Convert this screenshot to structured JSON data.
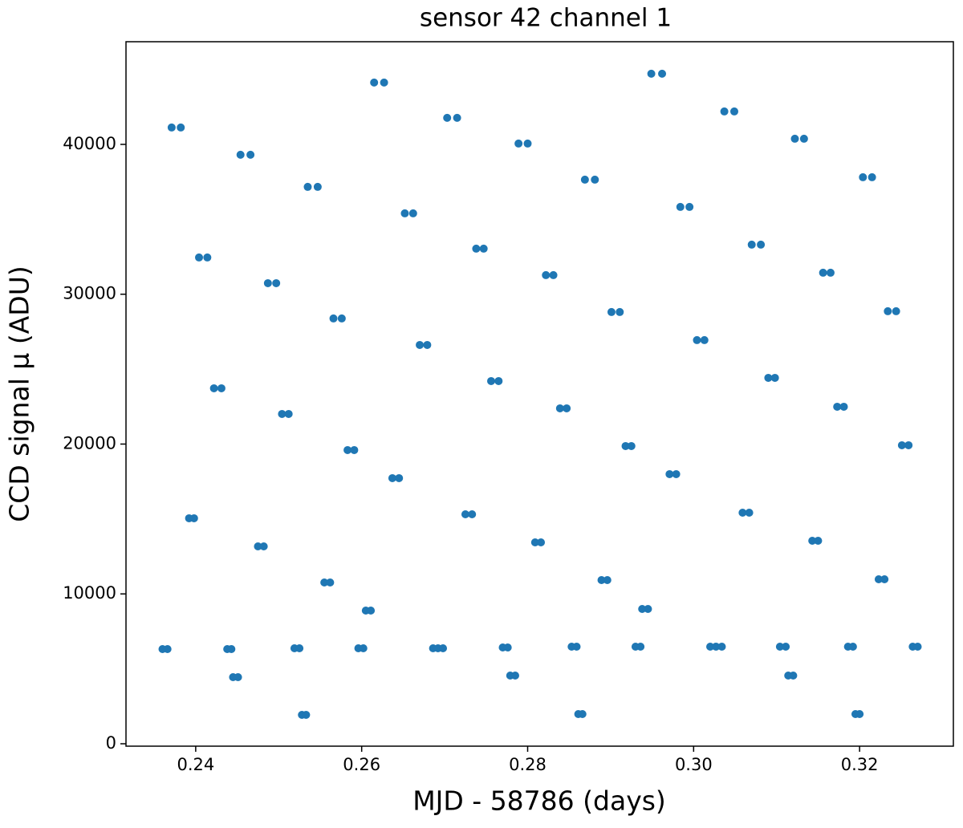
{
  "chart_data": {
    "type": "scatter",
    "title": "sensor 42 channel 1",
    "xlabel": "MJD - 58786 (days)",
    "ylabel": "CCD signal μ (ADU)",
    "color": "#1f77b4",
    "x": [
      0.236,
      0.2366,
      0.2371,
      0.2382,
      0.2392,
      0.2398,
      0.2404,
      0.2414,
      0.2422,
      0.2431,
      0.2438,
      0.2443,
      0.2445,
      0.2451,
      0.2454,
      0.2466,
      0.2475,
      0.2482,
      0.2487,
      0.2497,
      0.2504,
      0.2512,
      0.2519,
      0.2525,
      0.2528,
      0.2533,
      0.2535,
      0.2547,
      0.2555,
      0.2562,
      0.2566,
      0.2576,
      0.2583,
      0.2591,
      0.2596,
      0.2602,
      0.2605,
      0.2611,
      0.2615,
      0.2627,
      0.2637,
      0.2645,
      0.2652,
      0.2662,
      0.267,
      0.2679,
      0.2686,
      0.2692,
      0.2698,
      0.2703,
      0.2715,
      0.2725,
      0.2733,
      0.2738,
      0.2747,
      0.2756,
      0.2765,
      0.277,
      0.2776,
      0.2779,
      0.2785,
      0.2789,
      0.28,
      0.2809,
      0.2816,
      0.2822,
      0.2831,
      0.2839,
      0.2847,
      0.2853,
      0.2859,
      0.2861,
      0.2866,
      0.2869,
      0.2881,
      0.2889,
      0.2896,
      0.2901,
      0.2911,
      0.2918,
      0.2925,
      0.293,
      0.2936,
      0.2938,
      0.2945,
      0.2949,
      0.2962,
      0.2971,
      0.2979,
      0.2984,
      0.2995,
      0.3004,
      0.3013,
      0.302,
      0.3027,
      0.3034,
      0.3037,
      0.3049,
      0.3059,
      0.3067,
      0.307,
      0.3081,
      0.309,
      0.3098,
      0.3104,
      0.3111,
      0.3114,
      0.312,
      0.3122,
      0.3133,
      0.3143,
      0.315,
      0.3156,
      0.3165,
      0.3173,
      0.3181,
      0.3186,
      0.3192,
      0.3195,
      0.32,
      0.3204,
      0.3215,
      0.3223,
      0.323,
      0.3234,
      0.3244,
      0.3251,
      0.3259,
      0.3264,
      0.327
    ],
    "y": [
      6319,
      6319,
      41126,
      41126,
      15048,
      15048,
      32451,
      32451,
      23723,
      23723,
      6319,
      6319,
      4445,
      4445,
      39306,
      39306,
      13173,
      13173,
      30737,
      30737,
      22009,
      22009,
      6372,
      6372,
      1928,
      1928,
      37164,
      37164,
      10764,
      10764,
      28382,
      28382,
      19599,
      19599,
      6372,
      6372,
      8889,
      8889,
      44125,
      44125,
      17725,
      17725,
      35397,
      35397,
      26614,
      26614,
      6372,
      6372,
      6372,
      41769,
      41769,
      15315,
      15315,
      33040,
      33040,
      24205,
      24205,
      6426,
      6426,
      4552,
      4552,
      40055,
      40055,
      13441,
      13441,
      31273,
      31273,
      22384,
      22384,
      6480,
      6480,
      1981,
      1981,
      37645,
      37645,
      10924,
      10924,
      28810,
      28810,
      19867,
      19867,
      6480,
      6480,
      8996,
      8996,
      44714,
      44714,
      17993,
      17993,
      35825,
      35825,
      26936,
      26936,
      6480,
      6480,
      6480,
      42197,
      42197,
      15422,
      15422,
      33308,
      33308,
      24419,
      24419,
      6480,
      6480,
      4552,
      4552,
      40376,
      40376,
      13548,
      13548,
      31434,
      31434,
      22491,
      22491,
      6480,
      6480,
      1981,
      1981,
      37806,
      37806,
      10978,
      10978,
      28864,
      28864,
      19921,
      19921,
      6480,
      6480
    ],
    "xlim": [
      0.2316,
      0.3313
    ],
    "ylim": [
      -160,
      46850
    ],
    "xticks": [
      0.24,
      0.26,
      0.28,
      {
        "value": 0.3,
        "label": "0.30"
      },
      0.32
    ],
    "yticks": [
      0,
      10000,
      20000,
      30000,
      40000
    ]
  }
}
